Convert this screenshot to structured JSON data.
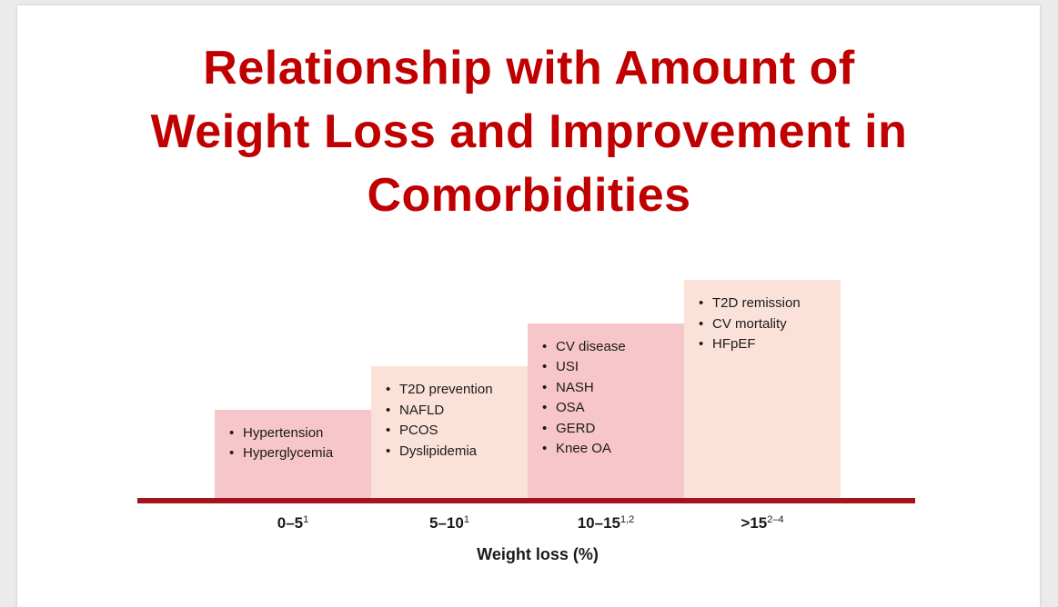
{
  "title_lines": [
    "Relationship with Amount of",
    "Weight Loss and Improvement in",
    "Comorbidities"
  ],
  "colors": {
    "title": "#c00000",
    "baseline": "#a5131c",
    "bar_pink": "#f7c6ca",
    "bar_beige": "#fbe2d9"
  },
  "bullet_glyph": "•",
  "chart_data": {
    "type": "bar",
    "xlabel": "Weight loss (%)",
    "categories": [
      {
        "label": "0–5",
        "sup": "1",
        "items": [
          "Hypertension",
          "Hyperglycemia"
        ]
      },
      {
        "label": "5–10",
        "sup": "1",
        "items": [
          "T2D prevention",
          "NAFLD",
          "PCOS",
          "Dyslipidemia"
        ]
      },
      {
        "label": "10–15",
        "sup": "1,2",
        "items": [
          "CV disease",
          "USI",
          "NASH",
          "OSA",
          "GERD",
          "Knee OA"
        ]
      },
      {
        "label": ">15",
        "sup": "2–4",
        "items": [
          "T2D remission",
          "CV mortality",
          "HFpEF"
        ]
      }
    ],
    "values": [
      1,
      2,
      3,
      4
    ],
    "ylim": [
      0,
      4
    ]
  }
}
